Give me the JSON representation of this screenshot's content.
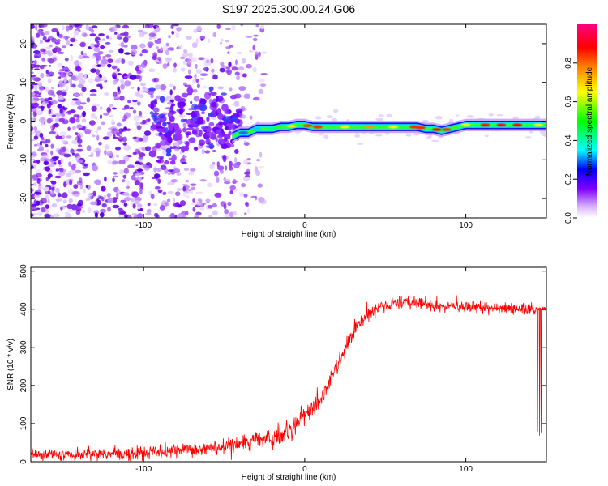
{
  "title": "S197.2025.300.00.24.G06",
  "chart_data": [
    {
      "type": "heatmap",
      "xlabel": "Height of straight line (km)",
      "ylabel": "Frequency (Hz)",
      "xlim": [
        -170,
        150
      ],
      "ylim": [
        -25,
        25
      ],
      "x_ticks": [
        -100,
        0,
        100
      ],
      "y_ticks": [
        -20,
        -10,
        0,
        10,
        20
      ],
      "ridge": {
        "x": [
          -45,
          -40,
          -35,
          -30,
          -25,
          -20,
          -15,
          -10,
          -5,
          0,
          5,
          10,
          20,
          30,
          40,
          50,
          60,
          70,
          75,
          80,
          85,
          90,
          95,
          100,
          110,
          120,
          130,
          140,
          145,
          150
        ],
        "y": [
          -4,
          -3,
          -3,
          -2,
          -2,
          -2,
          -1.5,
          -1.5,
          -1,
          -1,
          -1.5,
          -1.5,
          -1.5,
          -1.5,
          -1.5,
          -1.5,
          -1.5,
          -1.5,
          -2,
          -2,
          -2.5,
          -2,
          -1.5,
          -1,
          -1,
          -1,
          -1,
          -1,
          -1,
          -1
        ]
      },
      "colorbar": {
        "label": "Normalized spectral amplitude",
        "range": [
          0,
          1
        ],
        "ticks": [
          0.0,
          0.2,
          0.4,
          0.6,
          0.8
        ],
        "tick_labels": [
          "0.0",
          "0.2",
          "0.4",
          "0.6",
          "0.8"
        ],
        "colors": [
          "#ffffff",
          "#8000ff",
          "#0000ff",
          "#00ffff",
          "#00ff00",
          "#ffff00",
          "#ff8000",
          "#ff0000",
          "#ff0080"
        ]
      }
    },
    {
      "type": "line",
      "xlabel": "Height of straight line (km)",
      "ylabel": "SNR (10 * v/v)",
      "xlim": [
        -170,
        150
      ],
      "ylim": [
        0,
        510
      ],
      "x_ticks": [
        -100,
        0,
        100
      ],
      "y_ticks": [
        0,
        100,
        200,
        300,
        400,
        500
      ],
      "series": [
        {
          "color": "#ff0000",
          "x": [
            -170,
            -150,
            -130,
            -110,
            -90,
            -70,
            -50,
            -40,
            -30,
            -20,
            -15,
            -10,
            -5,
            0,
            5,
            10,
            15,
            20,
            25,
            30,
            35,
            40,
            45,
            50,
            55,
            60,
            70,
            80,
            90,
            100,
            110,
            120,
            130,
            135,
            140,
            142,
            145,
            148,
            150
          ],
          "y": [
            18,
            18,
            20,
            22,
            25,
            30,
            38,
            45,
            55,
            62,
            72,
            85,
            100,
            120,
            140,
            165,
            200,
            250,
            300,
            340,
            370,
            390,
            400,
            408,
            415,
            418,
            415,
            412,
            408,
            405,
            403,
            400,
            400,
            398,
            400,
            395,
            400,
            398,
            400
          ]
        }
      ]
    }
  ]
}
